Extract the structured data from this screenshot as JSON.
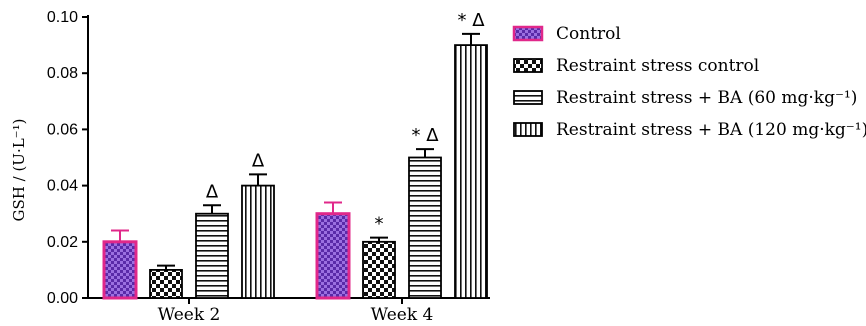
{
  "chart_data": {
    "type": "bar",
    "title": "",
    "xlabel": "",
    "ylabel": "GSH / (U·L⁻¹)",
    "ylim": [
      0,
      0.1
    ],
    "yticks": [
      "0.00",
      "0.02",
      "0.04",
      "0.06",
      "0.08",
      "0.10"
    ],
    "categories": [
      "Week 2",
      "Week 4"
    ],
    "grid": false,
    "legend_position": "right",
    "series": [
      {
        "name": "Control",
        "values": [
          0.02,
          0.03
        ],
        "errors": [
          0.004,
          0.004
        ],
        "annotations": [
          "",
          ""
        ],
        "pattern": "magenta-outlined-purple-checker",
        "stroke_color": "#e0288a",
        "fill_color": "#7a3fd0"
      },
      {
        "name": "Restraint stress control",
        "values": [
          0.01,
          0.02
        ],
        "errors": [
          0.0015,
          0.0015
        ],
        "annotations": [
          "",
          "*"
        ],
        "pattern": "black-checker"
      },
      {
        "name": "Restraint stress + BA (60 mg·kg⁻¹)",
        "values": [
          0.03,
          0.05
        ],
        "errors": [
          0.003,
          0.003
        ],
        "annotations": [
          "Δ",
          "* Δ"
        ],
        "pattern": "horizontal-stripes"
      },
      {
        "name": "Restraint stress + BA (120 mg·kg⁻¹)",
        "values": [
          0.04,
          0.09
        ],
        "errors": [
          0.004,
          0.004
        ],
        "annotations": [
          "Δ",
          "* Δ"
        ],
        "pattern": "vertical-stripes"
      }
    ]
  }
}
